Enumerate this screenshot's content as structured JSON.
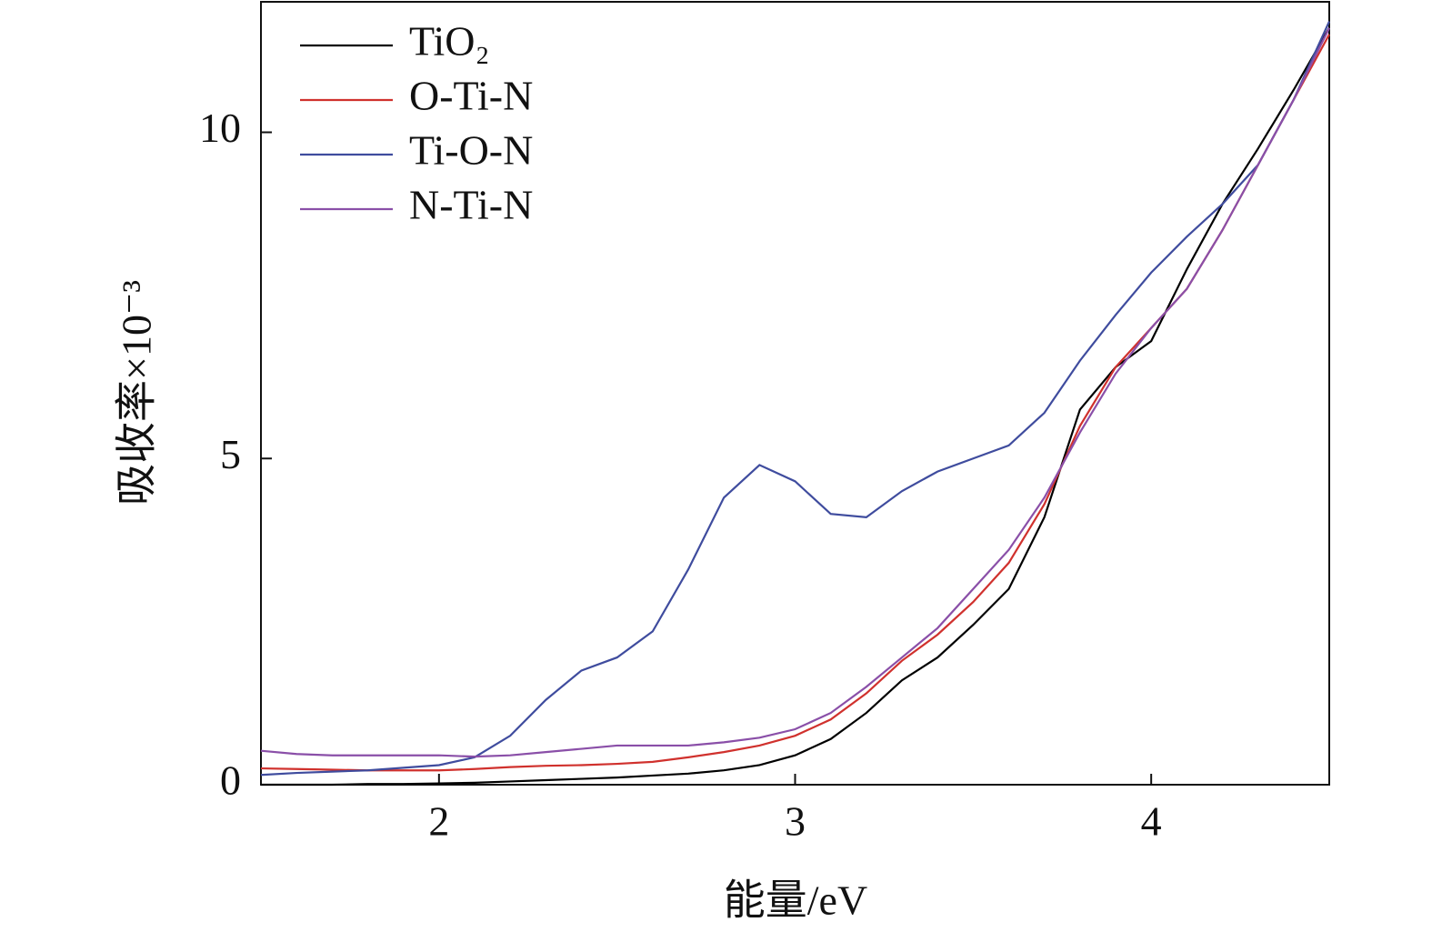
{
  "chart_data": {
    "type": "line",
    "x_label": "能量/eV",
    "y_label": "吸收率×10⁻³",
    "x": [
      1.5,
      1.6,
      1.7,
      1.8,
      1.9,
      2.0,
      2.1,
      2.2,
      2.3,
      2.4,
      2.5,
      2.6,
      2.7,
      2.8,
      2.9,
      3.0,
      3.1,
      3.2,
      3.3,
      3.4,
      3.5,
      3.6,
      3.7,
      3.8,
      3.9,
      4.0,
      4.1,
      4.2,
      4.3,
      4.4,
      4.5
    ],
    "series": [
      {
        "name": "TiO₂",
        "color": "#000000",
        "values": [
          0.0,
          0.0,
          0.0,
          0.01,
          0.01,
          0.02,
          0.03,
          0.05,
          0.07,
          0.09,
          0.11,
          0.14,
          0.17,
          0.22,
          0.3,
          0.45,
          0.7,
          1.1,
          1.6,
          1.95,
          2.45,
          3.0,
          4.1,
          5.75,
          6.4,
          6.8,
          7.9,
          8.9,
          9.75,
          10.65,
          11.6
        ]
      },
      {
        "name": "O-Ti-N",
        "color": "#d0312d",
        "values": [
          0.25,
          0.24,
          0.23,
          0.22,
          0.22,
          0.22,
          0.24,
          0.27,
          0.29,
          0.3,
          0.32,
          0.35,
          0.42,
          0.5,
          0.6,
          0.75,
          1.0,
          1.4,
          1.9,
          2.3,
          2.8,
          3.4,
          4.3,
          5.5,
          6.4,
          7.0,
          7.6,
          8.5,
          9.5,
          10.5,
          11.5
        ]
      },
      {
        "name": "Ti-O-N",
        "color": "#3f4c9e",
        "values": [
          0.15,
          0.18,
          0.2,
          0.22,
          0.26,
          0.3,
          0.42,
          0.75,
          1.3,
          1.75,
          1.95,
          2.35,
          3.3,
          4.4,
          4.9,
          4.65,
          4.15,
          4.1,
          4.5,
          4.8,
          5.0,
          5.2,
          5.7,
          6.5,
          7.2,
          7.85,
          8.4,
          8.9,
          9.5,
          10.5,
          11.7
        ]
      },
      {
        "name": "N-Ti-N",
        "color": "#8a4fa8",
        "values": [
          0.52,
          0.47,
          0.45,
          0.45,
          0.45,
          0.45,
          0.43,
          0.45,
          0.5,
          0.55,
          0.6,
          0.6,
          0.6,
          0.65,
          0.72,
          0.85,
          1.1,
          1.5,
          1.95,
          2.4,
          3.0,
          3.6,
          4.4,
          5.4,
          6.3,
          7.0,
          7.6,
          8.5,
          9.5,
          10.5,
          11.6
        ]
      }
    ],
    "xlim": [
      1.5,
      4.5
    ],
    "xticks": [
      2,
      3,
      4
    ],
    "ylim": [
      0,
      12
    ],
    "yticks": [
      0,
      5,
      10
    ],
    "legend": "upper-left"
  }
}
